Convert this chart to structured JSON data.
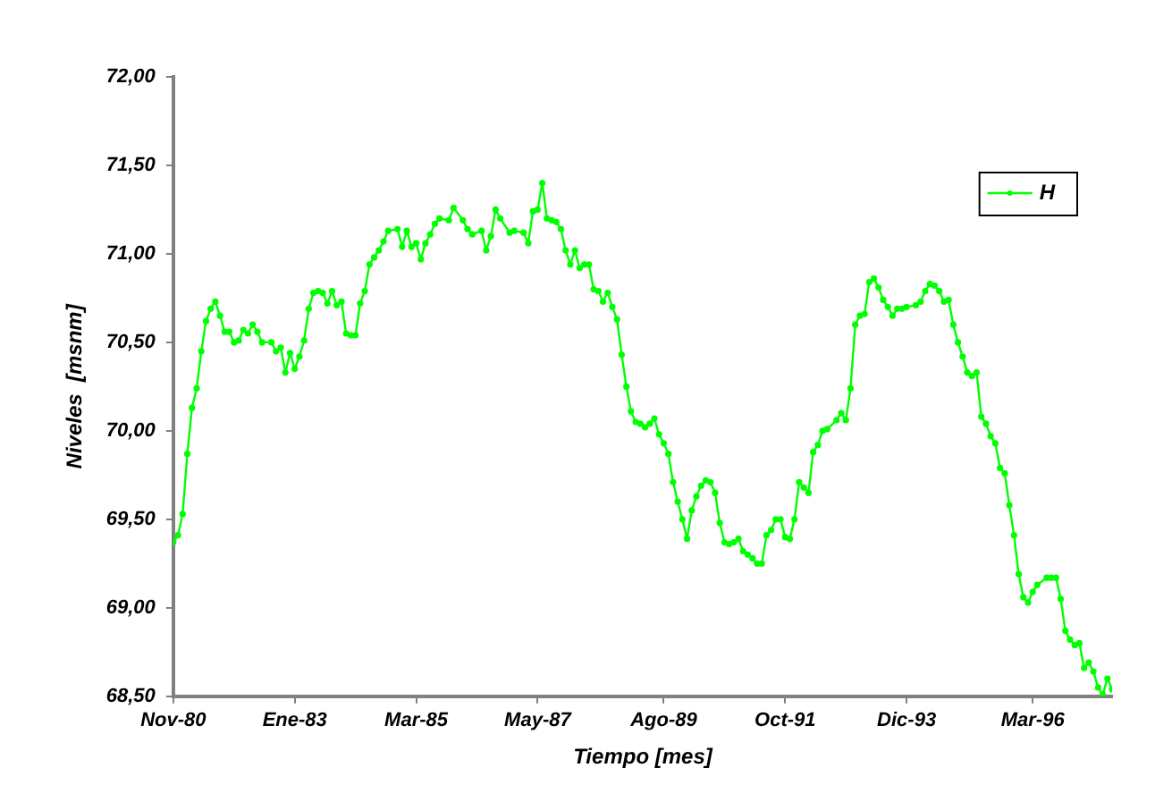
{
  "chart_data": {
    "type": "line",
    "xlabel": "Tiempo [mes]",
    "ylabel": "Niveles  [msnm]",
    "x": [
      "1980-11",
      "1980-12",
      "1981-01",
      "1981-02",
      "1981-03",
      "1981-04",
      "1981-05",
      "1981-06",
      "1981-07",
      "1981-08",
      "1981-09",
      "1981-10",
      "1981-11",
      "1981-12",
      "1982-01",
      "1982-02",
      "1982-03",
      "1982-04",
      "1982-05",
      "1982-06",
      "1982-08",
      "1982-09",
      "1982-10",
      "1982-11",
      "1982-12",
      "1983-01",
      "1983-02",
      "1983-03",
      "1983-04",
      "1983-05",
      "1983-06",
      "1983-07",
      "1983-08",
      "1983-09",
      "1983-10",
      "1983-11",
      "1983-12",
      "1984-01",
      "1984-02",
      "1984-03",
      "1984-04",
      "1984-05",
      "1984-06",
      "1984-07",
      "1984-08",
      "1984-09",
      "1984-11",
      "1984-12",
      "1985-01",
      "1985-02",
      "1985-03",
      "1985-04",
      "1985-05",
      "1985-06",
      "1985-07",
      "1985-08",
      "1985-10",
      "1985-11",
      "1986-01",
      "1986-02",
      "1986-03",
      "1986-05",
      "1986-06",
      "1986-07",
      "1986-08",
      "1986-09",
      "1986-11",
      "1986-12",
      "1987-02",
      "1987-03",
      "1987-04",
      "1987-05",
      "1987-06",
      "1987-07",
      "1987-08",
      "1987-09",
      "1987-10",
      "1987-11",
      "1987-12",
      "1988-01",
      "1988-02",
      "1988-03",
      "1988-04",
      "1988-05",
      "1988-06",
      "1988-07",
      "1988-08",
      "1988-09",
      "1988-10",
      "1988-11",
      "1988-12",
      "1989-01",
      "1989-02",
      "1989-03",
      "1989-04",
      "1989-05",
      "1989-06",
      "1989-07",
      "1989-08",
      "1989-09",
      "1989-10",
      "1989-11",
      "1989-12",
      "1990-01",
      "1990-02",
      "1990-03",
      "1990-04",
      "1990-05",
      "1990-06",
      "1990-07",
      "1990-08",
      "1990-09",
      "1990-10",
      "1990-11",
      "1990-12",
      "1991-01",
      "1991-02",
      "1991-03",
      "1991-04",
      "1991-05",
      "1991-06",
      "1991-07",
      "1991-08",
      "1991-09",
      "1991-10",
      "1991-11",
      "1991-12",
      "1992-01",
      "1992-02",
      "1992-03",
      "1992-04",
      "1992-05",
      "1992-06",
      "1992-07",
      "1992-09",
      "1992-10",
      "1992-11",
      "1992-12",
      "1993-01",
      "1993-02",
      "1993-03",
      "1993-04",
      "1993-05",
      "1993-06",
      "1993-07",
      "1993-08",
      "1993-09",
      "1993-10",
      "1993-11",
      "1993-12",
      "1994-02",
      "1994-03",
      "1994-04",
      "1994-05",
      "1994-06",
      "1994-07",
      "1994-08",
      "1994-09",
      "1994-10",
      "1994-11",
      "1994-12",
      "1995-01",
      "1995-02",
      "1995-03",
      "1995-04",
      "1995-05",
      "1995-06",
      "1995-07",
      "1995-08",
      "1995-09",
      "1995-10",
      "1995-11",
      "1995-12",
      "1996-01",
      "1996-02",
      "1996-03",
      "1996-04",
      "1996-06",
      "1996-07",
      "1996-08",
      "1996-09",
      "1996-10",
      "1996-11",
      "1996-12",
      "1997-01",
      "1997-02",
      "1997-03",
      "1997-04",
      "1997-05",
      "1997-06",
      "1997-07",
      "1997-08"
    ],
    "series": [
      {
        "name": "H",
        "color": "#00ff00",
        "values": [
          69.37,
          69.41,
          69.53,
          69.87,
          70.13,
          70.24,
          70.45,
          70.62,
          70.69,
          70.73,
          70.65,
          70.56,
          70.56,
          70.5,
          70.51,
          70.57,
          70.55,
          70.6,
          70.56,
          70.5,
          70.5,
          70.45,
          70.47,
          70.33,
          70.44,
          70.35,
          70.42,
          70.51,
          70.69,
          70.78,
          70.79,
          70.78,
          70.72,
          70.79,
          70.71,
          70.73,
          70.55,
          70.54,
          70.54,
          70.72,
          70.79,
          70.94,
          70.98,
          71.02,
          71.07,
          71.13,
          71.14,
          71.04,
          71.13,
          71.04,
          71.06,
          70.97,
          71.06,
          71.11,
          71.17,
          71.2,
          71.19,
          71.26,
          71.19,
          71.14,
          71.11,
          71.13,
          71.02,
          71.1,
          71.25,
          71.2,
          71.12,
          71.13,
          71.12,
          71.06,
          71.24,
          71.25,
          71.4,
          71.2,
          71.19,
          71.18,
          71.14,
          71.02,
          70.94,
          71.02,
          70.92,
          70.94,
          70.94,
          70.8,
          70.79,
          70.73,
          70.78,
          70.7,
          70.63,
          70.43,
          70.25,
          70.11,
          70.05,
          70.04,
          70.02,
          70.04,
          70.07,
          69.98,
          69.93,
          69.87,
          69.71,
          69.6,
          69.5,
          69.39,
          69.55,
          69.63,
          69.69,
          69.72,
          69.71,
          69.65,
          69.48,
          69.37,
          69.36,
          69.37,
          69.39,
          69.32,
          69.3,
          69.28,
          69.25,
          69.25,
          69.41,
          69.44,
          69.5,
          69.5,
          69.4,
          69.39,
          69.5,
          69.71,
          69.68,
          69.65,
          69.88,
          69.92,
          70.0,
          70.01,
          70.06,
          70.1,
          70.06,
          70.24,
          70.6,
          70.65,
          70.66,
          70.84,
          70.86,
          70.81,
          70.74,
          70.7,
          70.65,
          70.69,
          70.69,
          70.7,
          70.71,
          70.73,
          70.79,
          70.83,
          70.82,
          70.79,
          70.73,
          70.74,
          70.6,
          70.5,
          70.42,
          70.33,
          70.31,
          70.33,
          70.08,
          70.04,
          69.97,
          69.93,
          69.79,
          69.76,
          69.58,
          69.41,
          69.19,
          69.06,
          69.03,
          69.09,
          69.13,
          69.17,
          69.17,
          69.17,
          69.05,
          68.87,
          68.82,
          68.79,
          68.8,
          68.66,
          68.69,
          68.64,
          68.55,
          68.51,
          68.6,
          68.54
        ]
      }
    ],
    "xlim": [
      "1980-11",
      "1997-08"
    ],
    "xticks": [
      {
        "value": "1980-11",
        "label": "Nov-80"
      },
      {
        "value": "1983-01",
        "label": "Ene-83"
      },
      {
        "value": "1985-03",
        "label": "Mar-85"
      },
      {
        "value": "1987-05",
        "label": "May-87"
      },
      {
        "value": "1989-08",
        "label": "Ago-89"
      },
      {
        "value": "1991-10",
        "label": "Oct-91"
      },
      {
        "value": "1993-12",
        "label": "Dic-93"
      },
      {
        "value": "1996-03",
        "label": "Mar-96"
      }
    ],
    "ylim": [
      68.5,
      72
    ],
    "yticks": [
      {
        "value": 68.5,
        "label": "68,50"
      },
      {
        "value": 69,
        "label": "69,00"
      },
      {
        "value": 69.5,
        "label": "69,50"
      },
      {
        "value": 70,
        "label": "70,00"
      },
      {
        "value": 70.5,
        "label": "70,50"
      },
      {
        "value": 71,
        "label": "71,00"
      },
      {
        "value": 71.5,
        "label": "71,50"
      },
      {
        "value": 72,
        "label": "72,00"
      }
    ],
    "grid": false,
    "legend": "top right",
    "marker": "circle",
    "line_style": "solid"
  }
}
